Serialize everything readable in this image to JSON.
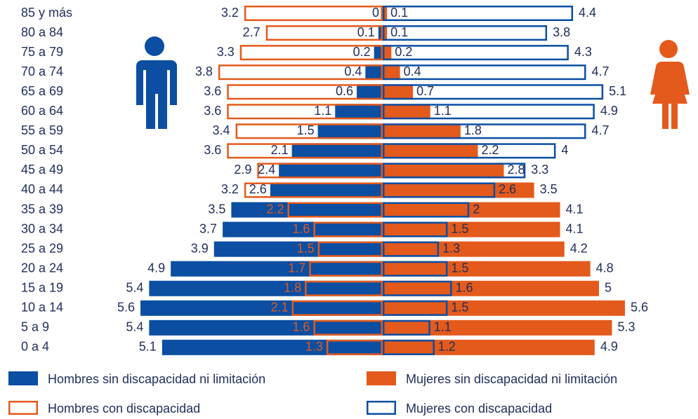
{
  "chart_data": {
    "type": "pyramid",
    "categories": [
      "85 y más",
      "80 a 84",
      "75 a 79",
      "70 a 74",
      "65 a 69",
      "60 a 64",
      "55 a 59",
      "50 a 54",
      "45 a 49",
      "40 a 44",
      "35 a 39",
      "30 a 34",
      "25 a 29",
      "20 a 24",
      "15 a 19",
      "10 a 14",
      "5 a 9",
      "0 a 4"
    ],
    "series": [
      {
        "name": "Hombres sin discapacidad ni limitación",
        "color": "#0b4ea2",
        "side": "left",
        "style": "solid",
        "values": [
          0.0,
          0.1,
          0.2,
          0.4,
          0.6,
          1.1,
          1.5,
          2.1,
          2.4,
          2.6,
          3.5,
          3.7,
          3.9,
          4.9,
          5.4,
          5.6,
          5.4,
          5.1
        ]
      },
      {
        "name": "Hombres con discapacidad",
        "color": "#e35a1c",
        "side": "left",
        "style": "outline",
        "values": [
          3.2,
          2.7,
          3.3,
          3.8,
          3.6,
          3.6,
          3.4,
          3.6,
          2.9,
          3.2,
          2.2,
          1.6,
          1.5,
          1.7,
          1.8,
          2.1,
          1.6,
          1.3
        ]
      },
      {
        "name": "Mujeres sin discapacidad ni limitación",
        "color": "#e35a1c",
        "side": "right",
        "style": "solid",
        "values": [
          0.1,
          0.1,
          0.2,
          0.4,
          0.7,
          1.1,
          1.8,
          2.2,
          2.8,
          3.5,
          4.1,
          4.1,
          4.2,
          4.8,
          5.0,
          5.6,
          5.3,
          4.9
        ]
      },
      {
        "name": "Mujeres con discapacidad",
        "color": "#0b4ea2",
        "side": "right",
        "style": "outline",
        "values": [
          4.4,
          3.8,
          4.3,
          4.7,
          5.1,
          4.9,
          4.7,
          4.0,
          3.3,
          2.6,
          2.0,
          1.5,
          1.3,
          1.5,
          1.6,
          1.5,
          1.1,
          1.2
        ]
      }
    ]
  }
}
